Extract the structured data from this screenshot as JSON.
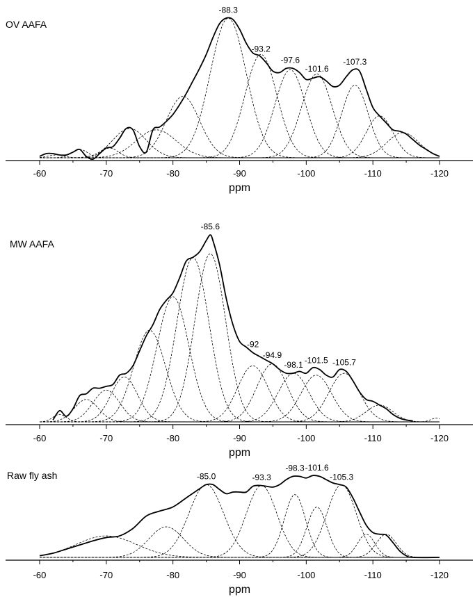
{
  "chart_data": [
    {
      "type": "line",
      "label": "OV AAFA",
      "xlabel": "ppm",
      "xlim": [
        -60,
        -120
      ],
      "x_ticks": [
        "-60",
        "-70",
        "-80",
        "-90",
        "-100",
        "-110",
        "-120"
      ],
      "peak_labels": [
        {
          "x": -88.3,
          "text": "-88.3"
        },
        {
          "x": -93.2,
          "text": "-93.2"
        },
        {
          "x": -97.6,
          "text": "-97.6"
        },
        {
          "x": -101.6,
          "text": "-101.6"
        },
        {
          "x": -107.3,
          "text": "-107.3"
        }
      ],
      "components": [
        {
          "center": -62.5,
          "height": 0.02,
          "width": 1.2
        },
        {
          "center": -66.0,
          "height": 0.06,
          "width": 1.2
        },
        {
          "center": -70.5,
          "height": 0.07,
          "width": 1.3
        },
        {
          "center": -73.5,
          "height": 0.21,
          "width": 2.5
        },
        {
          "center": -77.5,
          "height": 0.2,
          "width": 3.0
        },
        {
          "center": -81.5,
          "height": 0.44,
          "width": 2.5
        },
        {
          "center": -88.3,
          "height": 1.0,
          "width": 2.7
        },
        {
          "center": -93.2,
          "height": 0.74,
          "width": 2.4
        },
        {
          "center": -97.6,
          "height": 0.63,
          "width": 2.3
        },
        {
          "center": -101.6,
          "height": 0.6,
          "width": 2.3
        },
        {
          "center": -107.3,
          "height": 0.52,
          "width": 2.0
        },
        {
          "center": -111.0,
          "height": 0.3,
          "width": 2.0
        },
        {
          "center": -114.5,
          "height": 0.18,
          "width": 2.4
        }
      ],
      "experimental": [
        [
          -60,
          0.01
        ],
        [
          -61,
          0.03
        ],
        [
          -62,
          0.03
        ],
        [
          -63,
          0.02
        ],
        [
          -64,
          0.02
        ],
        [
          -65,
          0.04
        ],
        [
          -66,
          0.06
        ],
        [
          -67,
          0.01
        ],
        [
          -68,
          -0.01
        ],
        [
          -69,
          0.03
        ],
        [
          -70,
          0.07
        ],
        [
          -71,
          0.08
        ],
        [
          -72,
          0.14
        ],
        [
          -73,
          0.21
        ],
        [
          -74,
          0.2
        ],
        [
          -75,
          0.08
        ],
        [
          -76,
          0.04
        ],
        [
          -77,
          0.2
        ],
        [
          -78,
          0.22
        ],
        [
          -79,
          0.26
        ],
        [
          -80,
          0.31
        ],
        [
          -81,
          0.38
        ],
        [
          -82,
          0.46
        ],
        [
          -83,
          0.55
        ],
        [
          -84,
          0.64
        ],
        [
          -85,
          0.74
        ],
        [
          -86,
          0.86
        ],
        [
          -87,
          0.96
        ],
        [
          -88,
          1.0
        ],
        [
          -89,
          0.99
        ],
        [
          -90,
          0.92
        ],
        [
          -91,
          0.82
        ],
        [
          -92,
          0.75
        ],
        [
          -93,
          0.73
        ],
        [
          -94,
          0.68
        ],
        [
          -95,
          0.62
        ],
        [
          -96,
          0.61
        ],
        [
          -97,
          0.64
        ],
        [
          -98,
          0.64
        ],
        [
          -99,
          0.61
        ],
        [
          -100,
          0.56
        ],
        [
          -101,
          0.57
        ],
        [
          -102,
          0.58
        ],
        [
          -103,
          0.55
        ],
        [
          -104,
          0.51
        ],
        [
          -105,
          0.52
        ],
        [
          -106,
          0.58
        ],
        [
          -107,
          0.63
        ],
        [
          -108,
          0.62
        ],
        [
          -109,
          0.49
        ],
        [
          -110,
          0.36
        ],
        [
          -111,
          0.3
        ],
        [
          -112,
          0.25
        ],
        [
          -113,
          0.2
        ],
        [
          -114,
          0.19
        ],
        [
          -115,
          0.17
        ],
        [
          -116,
          0.13
        ],
        [
          -117,
          0.09
        ],
        [
          -118,
          0.06
        ],
        [
          -119,
          0.03
        ],
        [
          -120,
          0.01
        ]
      ]
    },
    {
      "type": "line",
      "label": "MW AAFA",
      "xlabel": "ppm",
      "xlim": [
        -60,
        -120
      ],
      "x_ticks": [
        "-60",
        "-70",
        "-80",
        "-90",
        "-100",
        "-110",
        "-120"
      ],
      "peak_labels": [
        {
          "x": -85.6,
          "text": "-85.6"
        },
        {
          "x": -92,
          "text": "-92"
        },
        {
          "x": -94.9,
          "text": "-94.9"
        },
        {
          "x": -98.1,
          "text": "-98.1"
        },
        {
          "x": -101.5,
          "text": "-101.5"
        },
        {
          "x": -105.7,
          "text": "-105.7"
        }
      ],
      "components": [
        {
          "center": -63.0,
          "height": 0.04,
          "width": 1.0
        },
        {
          "center": -67.0,
          "height": 0.12,
          "width": 1.8
        },
        {
          "center": -70.0,
          "height": 0.17,
          "width": 2.0
        },
        {
          "center": -72.7,
          "height": 0.24,
          "width": 2.0
        },
        {
          "center": -76.5,
          "height": 0.49,
          "width": 2.4
        },
        {
          "center": -80.0,
          "height": 0.67,
          "width": 2.4
        },
        {
          "center": -83.0,
          "height": 0.88,
          "width": 2.4
        },
        {
          "center": -85.6,
          "height": 0.9,
          "width": 2.3
        },
        {
          "center": -92.0,
          "height": 0.3,
          "width": 2.3
        },
        {
          "center": -94.9,
          "height": 0.31,
          "width": 2.3
        },
        {
          "center": -98.1,
          "height": 0.26,
          "width": 2.3
        },
        {
          "center": -101.5,
          "height": 0.25,
          "width": 2.3
        },
        {
          "center": -105.7,
          "height": 0.26,
          "width": 2.3
        },
        {
          "center": -111.0,
          "height": 0.09,
          "width": 2.0
        },
        {
          "center": -119.5,
          "height": 0.02,
          "width": 0.8
        }
      ],
      "experimental": [
        [
          -62,
          0.01
        ],
        [
          -63,
          0.06
        ],
        [
          -64,
          0.03
        ],
        [
          -65,
          0.07
        ],
        [
          -66,
          0.14
        ],
        [
          -67,
          0.15
        ],
        [
          -68,
          0.18
        ],
        [
          -69,
          0.18
        ],
        [
          -70,
          0.19
        ],
        [
          -71,
          0.2
        ],
        [
          -72,
          0.25
        ],
        [
          -73,
          0.26
        ],
        [
          -74,
          0.3
        ],
        [
          -75,
          0.38
        ],
        [
          -76,
          0.46
        ],
        [
          -77,
          0.52
        ],
        [
          -78,
          0.6
        ],
        [
          -79,
          0.65
        ],
        [
          -80,
          0.69
        ],
        [
          -81,
          0.77
        ],
        [
          -82,
          0.86
        ],
        [
          -83,
          0.88
        ],
        [
          -84,
          0.91
        ],
        [
          -85,
          0.97
        ],
        [
          -85.6,
          1.0
        ],
        [
          -86,
          0.97
        ],
        [
          -87,
          0.84
        ],
        [
          -88,
          0.66
        ],
        [
          -89,
          0.52
        ],
        [
          -90,
          0.43
        ],
        [
          -91,
          0.4
        ],
        [
          -92,
          0.37
        ],
        [
          -93,
          0.35
        ],
        [
          -94,
          0.33
        ],
        [
          -95,
          0.31
        ],
        [
          -96,
          0.28
        ],
        [
          -97,
          0.26
        ],
        [
          -98,
          0.26
        ],
        [
          -99,
          0.27
        ],
        [
          -100,
          0.26
        ],
        [
          -101,
          0.29
        ],
        [
          -102,
          0.28
        ],
        [
          -103,
          0.25
        ],
        [
          -104,
          0.24
        ],
        [
          -105,
          0.28
        ],
        [
          -106,
          0.27
        ],
        [
          -107,
          0.22
        ],
        [
          -108,
          0.16
        ],
        [
          -109,
          0.12
        ],
        [
          -110,
          0.11
        ],
        [
          -111,
          0.09
        ],
        [
          -112,
          0.07
        ],
        [
          -113,
          0.04
        ],
        [
          -114,
          0.02
        ],
        [
          -115,
          0.01
        ],
        [
          -116,
          0.005
        ]
      ]
    },
    {
      "type": "line",
      "label": "Raw fly ash",
      "xlabel": "ppm",
      "xlim": [
        -60,
        -120
      ],
      "x_ticks": [
        "-60",
        "-70",
        "-80",
        "-90",
        "-100",
        "-110",
        "-120"
      ],
      "peak_labels": [
        {
          "x": -85.0,
          "text": "-85.0"
        },
        {
          "x": -93.3,
          "text": "-93.3"
        },
        {
          "x": -98.3,
          "text": "-98.3"
        },
        {
          "x": -101.6,
          "text": "-101.6"
        },
        {
          "x": -105.3,
          "text": "-105.3"
        }
      ],
      "components": [
        {
          "center": -70.0,
          "height": 0.26,
          "width": 4.5
        },
        {
          "center": -79.0,
          "height": 0.37,
          "width": 2.6
        },
        {
          "center": -85.0,
          "height": 0.88,
          "width": 2.6
        },
        {
          "center": -93.3,
          "height": 0.87,
          "width": 2.3
        },
        {
          "center": -98.3,
          "height": 0.76,
          "width": 1.6
        },
        {
          "center": -101.6,
          "height": 0.61,
          "width": 1.5
        },
        {
          "center": -105.3,
          "height": 0.88,
          "width": 2.2
        },
        {
          "center": -109.0,
          "height": 0.28,
          "width": 1.3
        },
        {
          "center": -112.0,
          "height": 0.28,
          "width": 1.5
        }
      ],
      "experimental": [
        [
          -60,
          0.02
        ],
        [
          -62,
          0.05
        ],
        [
          -64,
          0.1
        ],
        [
          -66,
          0.15
        ],
        [
          -68,
          0.2
        ],
        [
          -70,
          0.24
        ],
        [
          -72,
          0.26
        ],
        [
          -74,
          0.35
        ],
        [
          -76,
          0.5
        ],
        [
          -78,
          0.56
        ],
        [
          -80,
          0.61
        ],
        [
          -82,
          0.72
        ],
        [
          -84,
          0.83
        ],
        [
          -85,
          0.88
        ],
        [
          -86,
          0.88
        ],
        [
          -87,
          0.82
        ],
        [
          -88,
          0.77
        ],
        [
          -89,
          0.79
        ],
        [
          -90,
          0.79
        ],
        [
          -91,
          0.79
        ],
        [
          -92,
          0.86
        ],
        [
          -93,
          0.87
        ],
        [
          -94,
          0.86
        ],
        [
          -95,
          0.85
        ],
        [
          -96,
          0.88
        ],
        [
          -97,
          0.94
        ],
        [
          -98,
          0.98
        ],
        [
          -99,
          0.98
        ],
        [
          -100,
          0.96
        ],
        [
          -101,
          0.99
        ],
        [
          -102,
          0.98
        ],
        [
          -103,
          0.94
        ],
        [
          -104,
          0.9
        ],
        [
          -105,
          0.88
        ],
        [
          -106,
          0.85
        ],
        [
          -107,
          0.72
        ],
        [
          -108,
          0.55
        ],
        [
          -109,
          0.39
        ],
        [
          -110,
          0.3
        ],
        [
          -111,
          0.28
        ],
        [
          -112,
          0.27
        ],
        [
          -113,
          0.18
        ],
        [
          -114,
          0.08
        ],
        [
          -115,
          0.02
        ],
        [
          -116,
          0.0
        ],
        [
          -120,
          0.0
        ]
      ]
    }
  ]
}
